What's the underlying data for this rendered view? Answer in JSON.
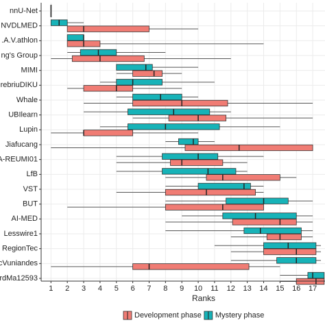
{
  "chart_data": {
    "type": "boxplot",
    "x_label": "Ranks",
    "categories": [
      "nnU-Net",
      "NVDLMED",
      ".A.V.athlon",
      "ng's Group",
      "MIMI",
      "erebriuDIKU",
      "Whale",
      "UBIlearn",
      "Lupin",
      "Jiafucang",
      "A-REUMI01",
      "LfB",
      "VST",
      "BUT",
      "AI-MED",
      "Lesswire1",
      "RegionTec",
      "cVuniandes",
      "rdMa12593"
    ],
    "series": [
      {
        "name": "Development phase",
        "color": "#f07c74",
        "boxes": [
          {
            "min": 1,
            "q1": 1,
            "median": 1,
            "q3": 1,
            "max": 1
          },
          {
            "min": 2,
            "q1": 2,
            "median": 3,
            "q3": 7,
            "max": 10
          },
          {
            "min": 2,
            "q1": 2,
            "median": 3,
            "q3": 4,
            "max": 14
          },
          {
            "min": 1,
            "q1": 2.3,
            "median": 4,
            "q3": 6.7,
            "max": 12
          },
          {
            "min": 5,
            "q1": 6,
            "median": 7.3,
            "q3": 7.8,
            "max": 9
          },
          {
            "min": 2,
            "q1": 3,
            "median": 5,
            "q3": 6,
            "max": 9
          },
          {
            "min": 3,
            "q1": 6,
            "median": 9,
            "q3": 11.8,
            "max": 17
          },
          {
            "min": 6,
            "q1": 8.2,
            "median": 10,
            "q3": 11.7,
            "max": 17
          },
          {
            "min": 1,
            "q1": 3,
            "median": 3,
            "q3": 6,
            "max": 10
          },
          {
            "min": 1,
            "q1": 9.2,
            "median": 12.5,
            "q3": 17,
            "max": 17
          },
          {
            "min": 5,
            "q1": 8.3,
            "median": 9,
            "q3": 11.5,
            "max": 13
          },
          {
            "min": 8,
            "q1": 10.5,
            "median": 11.5,
            "q3": 15,
            "max": 16
          },
          {
            "min": 5,
            "q1": 8,
            "median": 10.5,
            "q3": 13.5,
            "max": 14
          },
          {
            "min": 2,
            "q1": 8,
            "median": 11.5,
            "q3": 14,
            "max": 14
          },
          {
            "min": 8,
            "q1": 12.1,
            "median": 15,
            "q3": 16,
            "max": 17
          },
          {
            "min": 12,
            "q1": 14.2,
            "median": 15,
            "q3": 16.3,
            "max": 17
          },
          {
            "min": 12,
            "q1": 14,
            "median": 16,
            "q3": 17.2,
            "max": 17.5
          },
          {
            "min": 1,
            "q1": 6,
            "median": 7,
            "q3": 13.1,
            "max": 15
          },
          {
            "min": 15,
            "q1": 16,
            "median": 17.2,
            "q3": 17.7,
            "max": 17.7
          }
        ]
      },
      {
        "name": "Mystery phase",
        "color": "#17b3b8",
        "boxes": [
          {
            "min": 1,
            "q1": 1,
            "median": 1,
            "q3": 1,
            "max": 1
          },
          {
            "min": 1,
            "q1": 1,
            "median": 1.5,
            "q3": 2,
            "max": 3
          },
          {
            "min": 2,
            "q1": 2,
            "median": 3,
            "q3": 3,
            "max": 3
          },
          {
            "min": 2,
            "q1": 2.8,
            "median": 3.9,
            "q3": 5,
            "max": 8
          },
          {
            "min": 5,
            "q1": 5,
            "median": 6.8,
            "q3": 7.2,
            "max": 10
          },
          {
            "min": 4,
            "q1": 5,
            "median": 6,
            "q3": 7.8,
            "max": 11
          },
          {
            "min": 5,
            "q1": 6,
            "median": 7.7,
            "q3": 9,
            "max": 10
          },
          {
            "min": 3,
            "q1": 5.7,
            "median": 8.5,
            "q3": 10.7,
            "max": 12
          },
          {
            "min": 4,
            "q1": 5.7,
            "median": 8,
            "q3": 11.3,
            "max": 15
          },
          {
            "min": 8,
            "q1": 8.8,
            "median": 9.7,
            "q3": 10,
            "max": 11
          },
          {
            "min": 5,
            "q1": 7.8,
            "median": 10,
            "q3": 11.2,
            "max": 14
          },
          {
            "min": 5,
            "q1": 7.8,
            "median": 10.6,
            "q3": 12.3,
            "max": 13
          },
          {
            "min": 8,
            "q1": 10,
            "median": 12.8,
            "q3": 13.2,
            "max": 14
          },
          {
            "min": 8,
            "q1": 11.7,
            "median": 14,
            "q3": 15.5,
            "max": 17
          },
          {
            "min": 9,
            "q1": 11.5,
            "median": 13.5,
            "q3": 16,
            "max": 17
          },
          {
            "min": 8,
            "q1": 12.8,
            "median": 13.8,
            "q3": 16.3,
            "max": 17
          },
          {
            "min": 11,
            "q1": 14,
            "median": 15.5,
            "q3": 17.2,
            "max": 17.5
          },
          {
            "min": 12,
            "q1": 14.8,
            "median": 16,
            "q3": 17.2,
            "max": 17.5
          },
          {
            "min": 15,
            "q1": 16.7,
            "median": 17,
            "q3": 17.7,
            "max": 17.7
          }
        ]
      }
    ],
    "xlim": [
      0.4,
      17.75
    ],
    "xticks": [
      1,
      2,
      3,
      4,
      5,
      6,
      7,
      8,
      9,
      10,
      11,
      12,
      13,
      14,
      15,
      16,
      17
    ],
    "grid": true,
    "legend": "bottom"
  }
}
